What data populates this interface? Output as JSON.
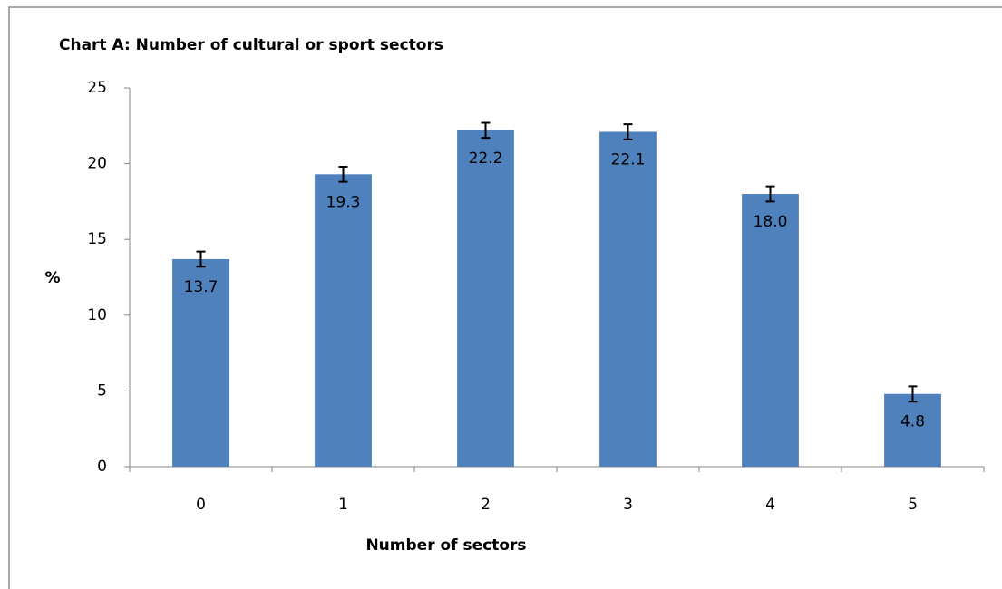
{
  "chart_data": {
    "type": "bar",
    "title": "Chart A: Number of cultural or sport sectors",
    "x_label": "Number of sectors",
    "y_label": "%",
    "categories": [
      "0",
      "1",
      "2",
      "3",
      "4",
      "5"
    ],
    "values": [
      13.7,
      19.3,
      22.2,
      22.1,
      18.0,
      4.8
    ],
    "value_labels": [
      "13.7",
      "19.3",
      "22.2",
      "22.1",
      "18.0",
      "4.8"
    ],
    "errors": [
      0.5,
      0.5,
      0.5,
      0.5,
      0.5,
      0.5
    ],
    "color": "#4f81bd",
    "ylim": [
      0,
      25
    ],
    "yticks": [
      0,
      5,
      10,
      15,
      20,
      25
    ],
    "grid": false
  }
}
